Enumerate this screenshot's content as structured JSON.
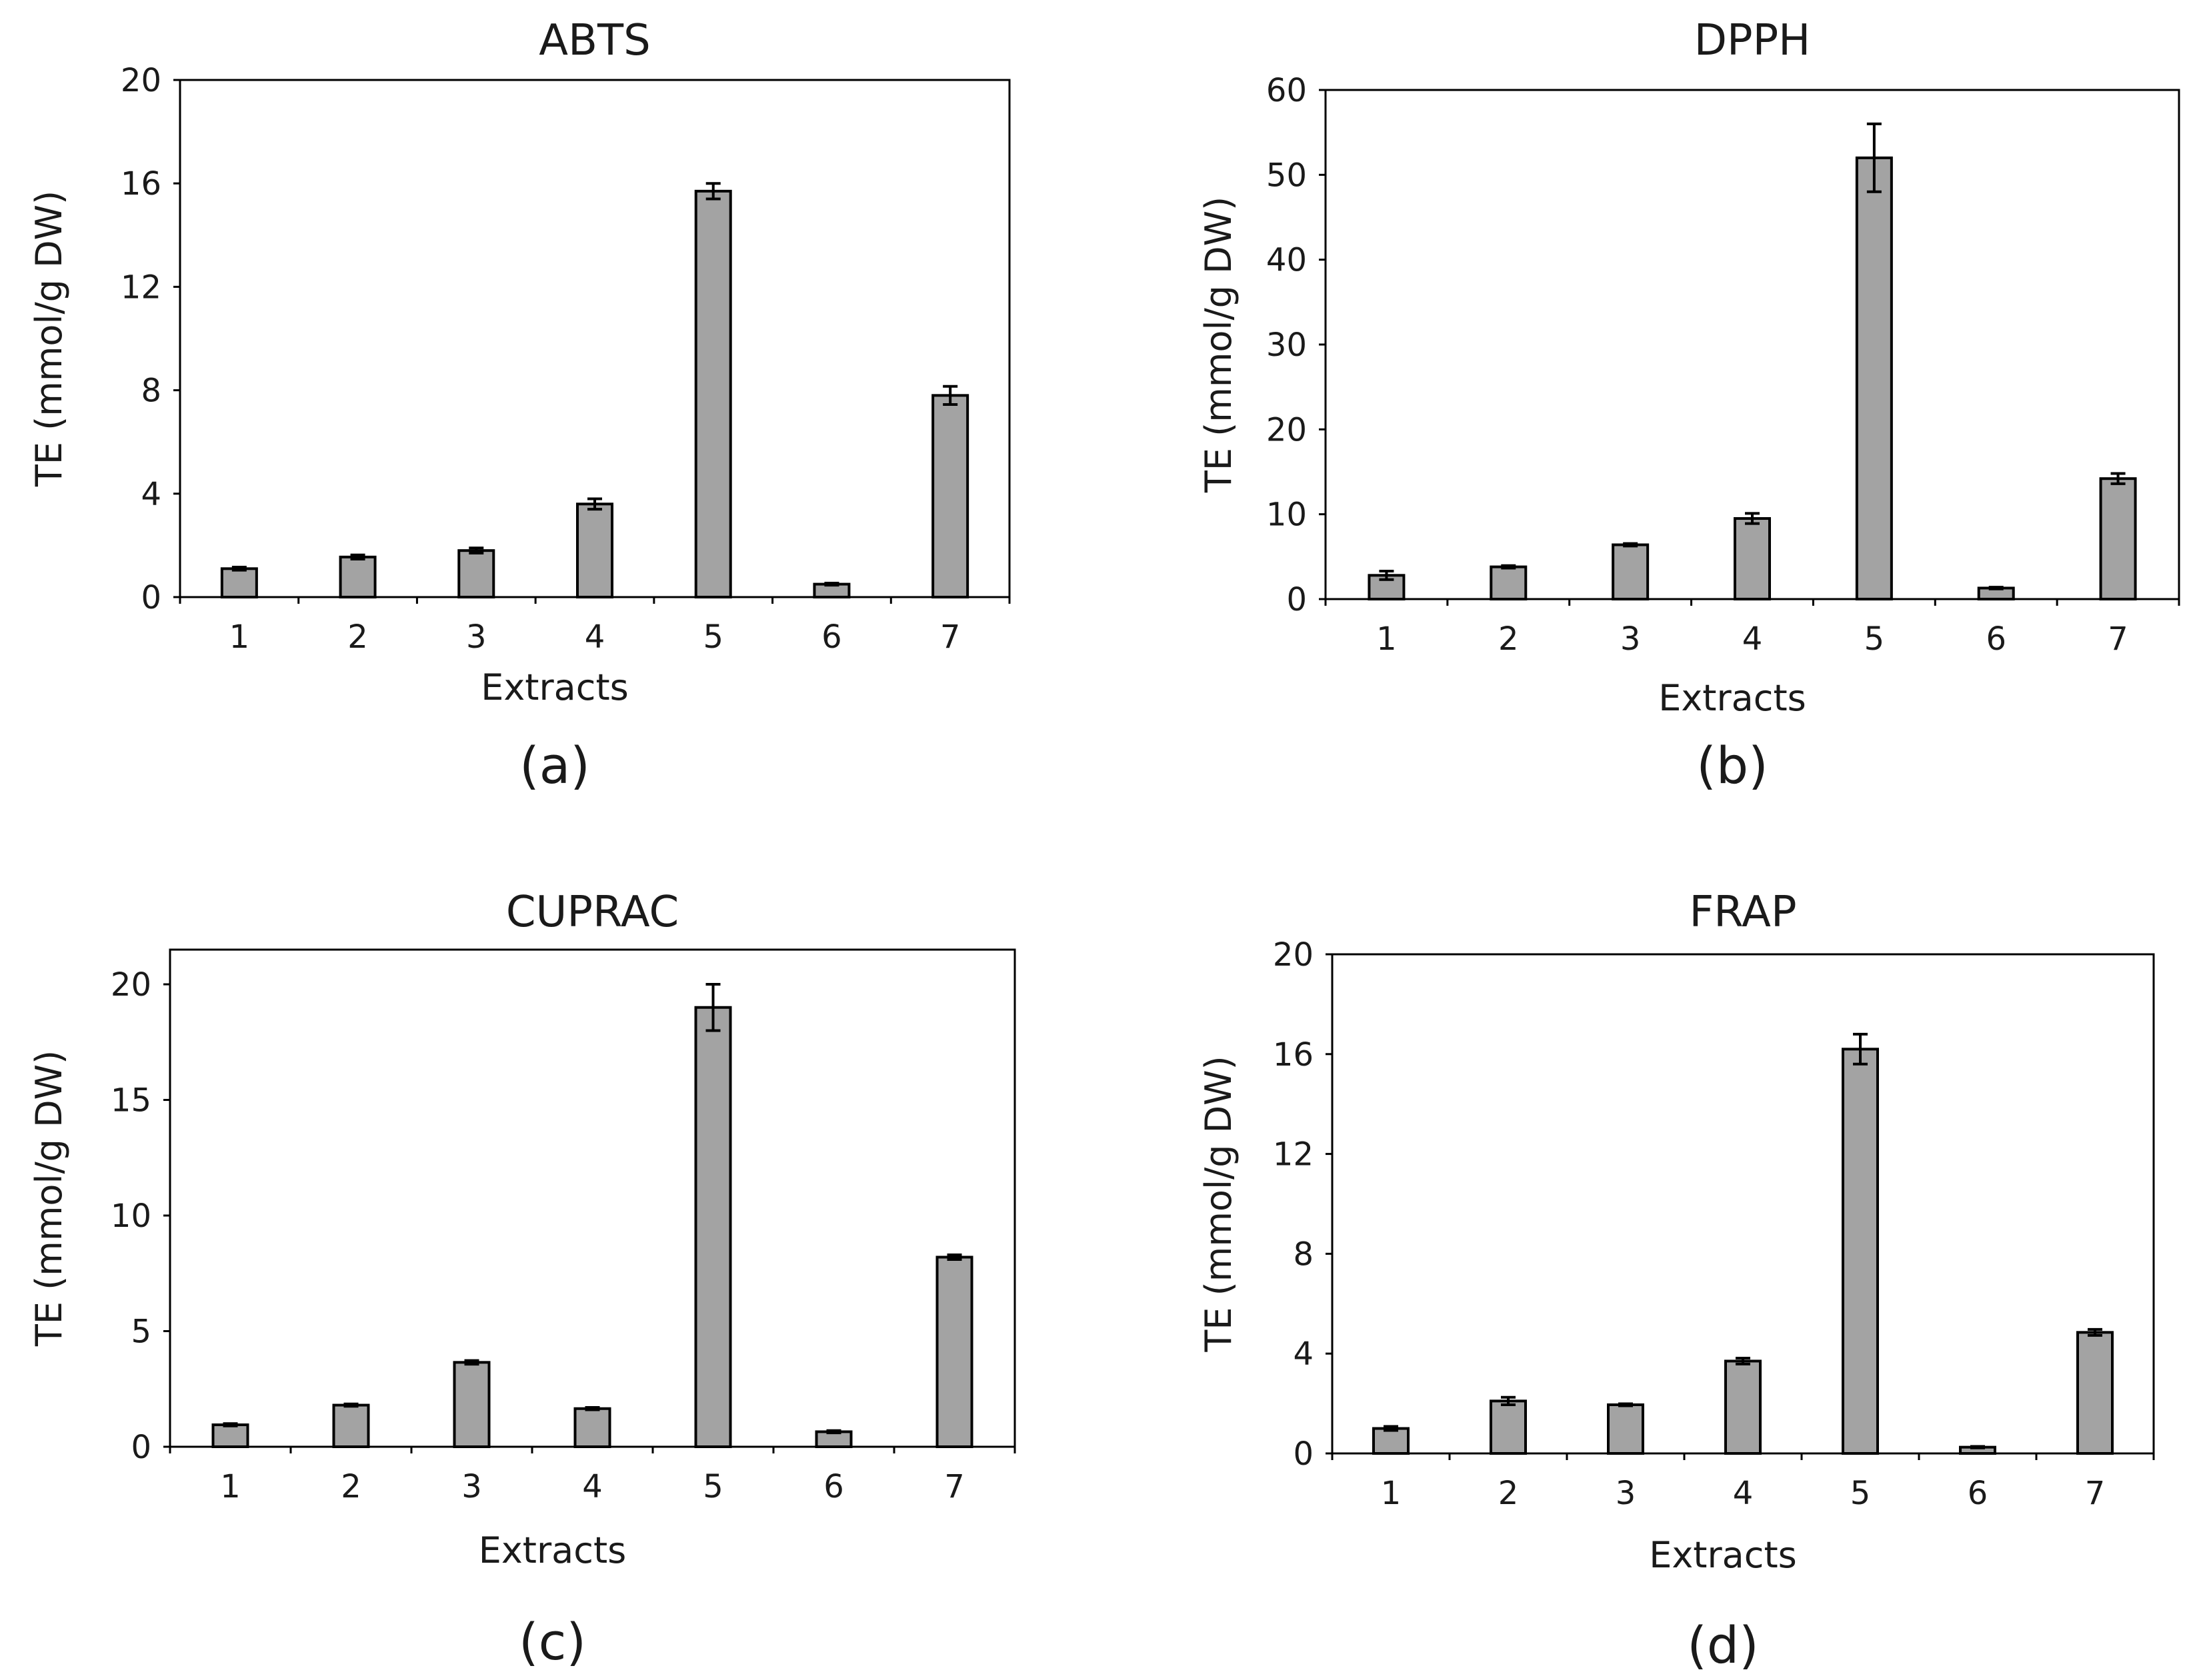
{
  "chart_data": [
    {
      "type": "bar",
      "panel_label": "(a)",
      "title": "ABTS",
      "xlabel": "Extracts",
      "ylabel": "TE (mmol/g DW)",
      "categories": [
        "1",
        "2",
        "3",
        "4",
        "5",
        "6",
        "7"
      ],
      "values": [
        1.1,
        1.55,
        1.8,
        3.6,
        15.7,
        0.5,
        7.8
      ],
      "errors": [
        0.06,
        0.08,
        0.1,
        0.2,
        0.3,
        0.04,
        0.35
      ],
      "ylim": [
        0,
        20
      ],
      "yticks": [
        0,
        4,
        8,
        12,
        16,
        20
      ],
      "grid": false
    },
    {
      "type": "bar",
      "panel_label": "(b)",
      "title": "DPPH",
      "xlabel": "Extracts",
      "ylabel": "TE (mmol/g DW)",
      "categories": [
        "1",
        "2",
        "3",
        "4",
        "5",
        "6",
        "7"
      ],
      "values": [
        2.8,
        3.8,
        6.4,
        9.5,
        52.0,
        1.3,
        14.2
      ],
      "errors": [
        0.5,
        0.15,
        0.15,
        0.6,
        4.0,
        0.1,
        0.6
      ],
      "ylim": [
        0,
        60
      ],
      "yticks": [
        0,
        10,
        20,
        30,
        40,
        50,
        60
      ],
      "grid": false
    },
    {
      "type": "bar",
      "panel_label": "(c)",
      "title": "CUPRAC",
      "xlabel": "Extracts",
      "ylabel": "TE (mmol/g DW)",
      "categories": [
        "1",
        "2",
        "3",
        "4",
        "5",
        "6",
        "7"
      ],
      "values": [
        0.95,
        1.8,
        3.65,
        1.65,
        19.0,
        0.65,
        8.2
      ],
      "errors": [
        0.05,
        0.05,
        0.08,
        0.05,
        1.0,
        0.05,
        0.1
      ],
      "ylim": [
        0,
        21.5
      ],
      "yticks": [
        0,
        5,
        10,
        15,
        20
      ],
      "grid": false
    },
    {
      "type": "bar",
      "panel_label": "(d)",
      "title": "FRAP",
      "xlabel": "Extracts",
      "ylabel": "TE (mmol/g DW)",
      "categories": [
        "1",
        "2",
        "3",
        "4",
        "5",
        "6",
        "7"
      ],
      "values": [
        1.0,
        2.1,
        1.95,
        3.7,
        16.2,
        0.25,
        4.85
      ],
      "errors": [
        0.08,
        0.15,
        0.04,
        0.12,
        0.6,
        0.03,
        0.12
      ],
      "ylim": [
        0,
        20
      ],
      "yticks": [
        0,
        4,
        8,
        12,
        16,
        20
      ],
      "grid": false
    }
  ]
}
